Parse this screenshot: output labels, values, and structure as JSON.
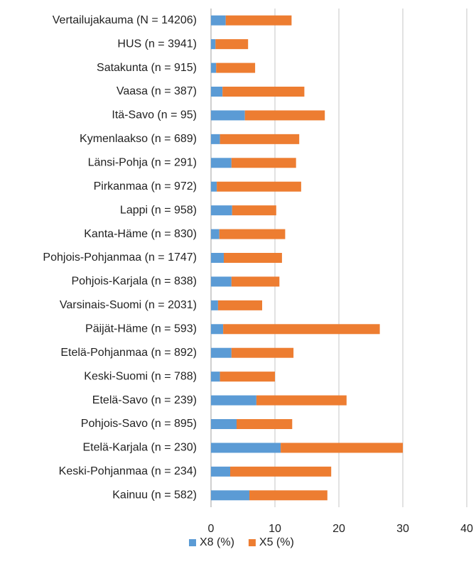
{
  "chart_data": {
    "type": "stacked-barh",
    "categories": [
      "Vertailujakauma (N = 14206)",
      "HUS (n = 3941)",
      "Satakunta (n = 915)",
      "Vaasa (n = 387)",
      "Itä-Savo (n = 95)",
      "Kymenlaakso (n = 689)",
      "Länsi-Pohja (n = 291)",
      "Pirkanmaa (n = 972)",
      "Lappi (n = 958)",
      "Kanta-Häme (n = 830)",
      "Pohjois-Pohjanmaa (n = 1747)",
      "Pohjois-Karjala (n = 838)",
      "Varsinais-Suomi (n = 2031)",
      "Päijät-Häme (n = 593)",
      "Etelä-Pohjanmaa (n = 892)",
      "Keski-Suomi (n = 788)",
      "Etelä-Savo (n = 239)",
      "Pohjois-Savo (n = 895)",
      "Etelä-Karjala (n = 230)",
      "Keski-Pohjanmaa (n = 234)",
      "Kainuu (n = 582)"
    ],
    "series": [
      {
        "name": "X8 (%)",
        "color": "#5b9bd5",
        "values": [
          2.3,
          0.7,
          0.8,
          1.8,
          5.3,
          1.4,
          3.2,
          0.9,
          3.3,
          1.3,
          2.0,
          3.2,
          1.1,
          1.9,
          3.2,
          1.4,
          7.1,
          4.0,
          10.9,
          3.0,
          6.0
        ]
      },
      {
        "name": "X5 (%)",
        "color": "#ed7d31",
        "values": [
          10.3,
          5.1,
          6.1,
          12.8,
          12.5,
          12.4,
          10.1,
          13.2,
          6.9,
          10.3,
          9.1,
          7.5,
          6.9,
          24.5,
          9.7,
          8.6,
          14.1,
          8.7,
          19.1,
          15.8,
          12.2
        ]
      }
    ],
    "xlim": [
      0,
      40
    ],
    "xticks": [
      0,
      10,
      20,
      30,
      40
    ],
    "grid": true,
    "legend": "bottom"
  }
}
